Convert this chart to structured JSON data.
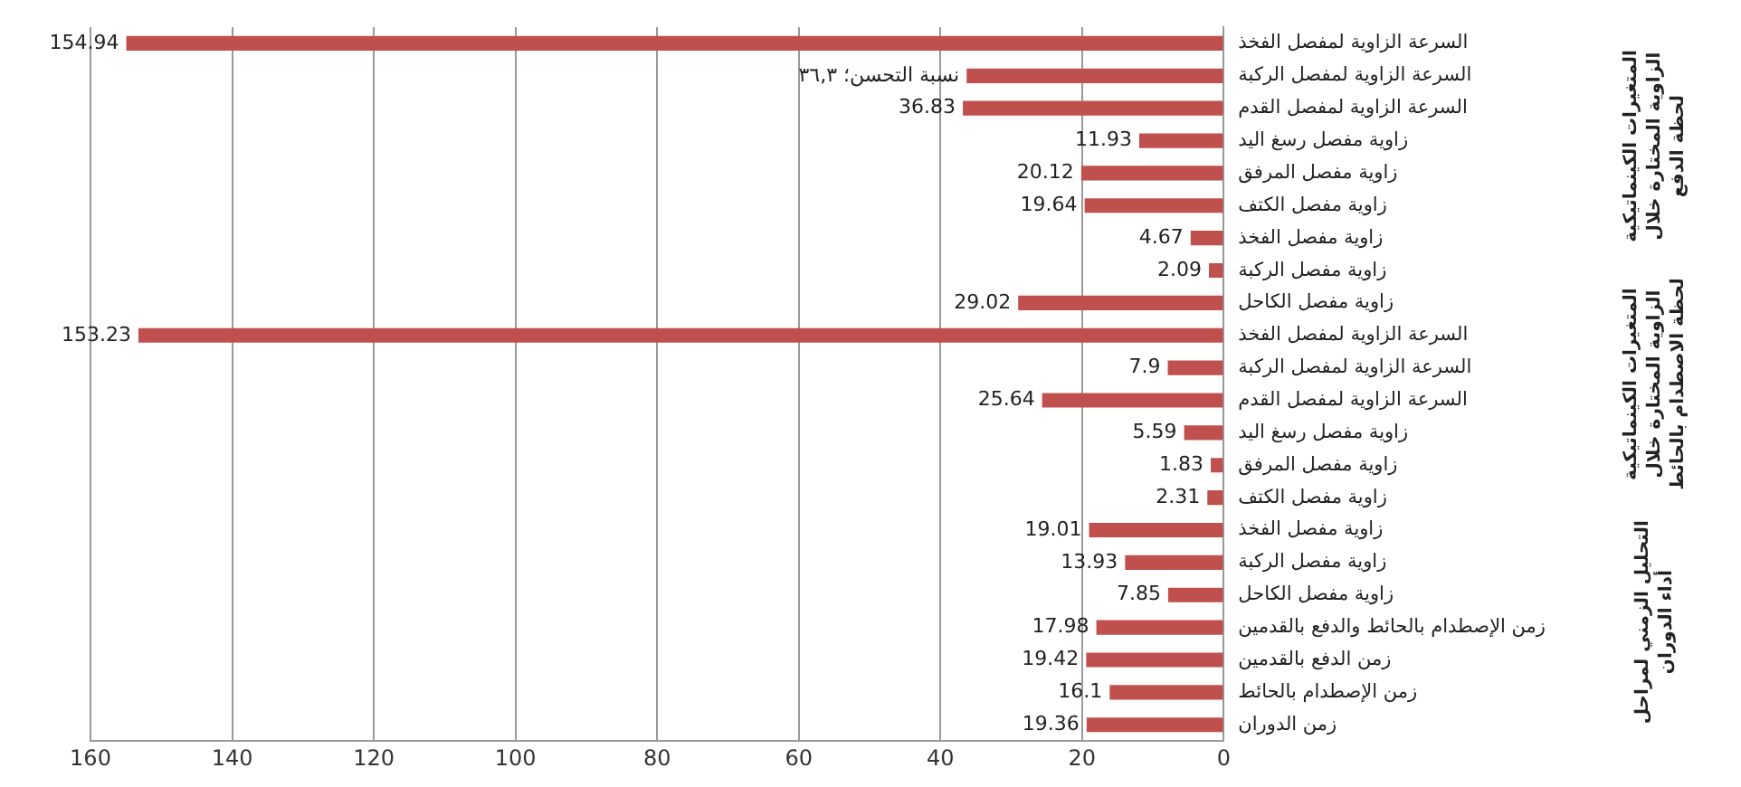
{
  "chart_data": {
    "type": "bar",
    "orientation": "horizontal",
    "categories": [
      "السرعة الزاوية لمفصل الفخذ",
      "السرعة الزاوية لمفصل الركبة",
      "السرعة الزاوية لمفصل القدم",
      "زاوية مفصل رسغ اليد",
      "زاوية مفصل المرفق",
      "زاوية مفصل الكتف",
      "زاوية مفصل الفخذ",
      "زاوية مفصل الركبة",
      "زاوية مفصل الكاحل",
      "السرعة الزاوية لمفصل الفخذ",
      "السرعة الزاوية لمفصل الركبة",
      "السرعة الزاوية لمفصل القدم",
      "زاوية مفصل رسغ اليد",
      "زاوية مفصل المرفق",
      "زاوية مفصل الكتف",
      "زاوية مفصل الفخذ",
      "زاوية مفصل الركبة",
      "زاوية مفصل الكاحل",
      "زمن الإصطدام بالحائط والدفع بالقدمين",
      "زمن الدفع بالقدمين",
      "زمن الإصطدام بالحائط",
      "زمن الدوران"
    ],
    "values": [
      154.94,
      36.3,
      36.83,
      11.93,
      20.12,
      19.64,
      4.67,
      2.09,
      29.02,
      153.23,
      7.9,
      25.64,
      5.59,
      1.83,
      2.31,
      19.01,
      13.93,
      7.85,
      17.98,
      19.42,
      16.1,
      19.36
    ],
    "value_labels": [
      "154.94",
      "نسبة التحسن؛ ٣٦,٣",
      "36.83",
      "11.93",
      "20.12",
      "19.64",
      "4.67",
      "2.09",
      "29.02",
      "153.23",
      "7.9",
      "25.64",
      "5.59",
      "1.83",
      "2.31",
      "19.01",
      "13.93",
      "7.85",
      "17.98",
      "19.42",
      "16.1",
      "19.36"
    ],
    "color": "#c0504d",
    "xlim": [
      160,
      0
    ],
    "xticks": [
      0,
      20,
      40,
      60,
      80,
      100,
      120,
      140,
      160
    ],
    "grid": "x",
    "annotations": [
      "المتغيرات الكينماتيكية الزاوية المختارة خلال لحظة الدفع",
      "المتغيرات الكينماتيكية الزاوية المختارة خلال لحظة الاصطدام بالحائط",
      "التحليل الزمني لمراحل أداء الدوران"
    ]
  }
}
